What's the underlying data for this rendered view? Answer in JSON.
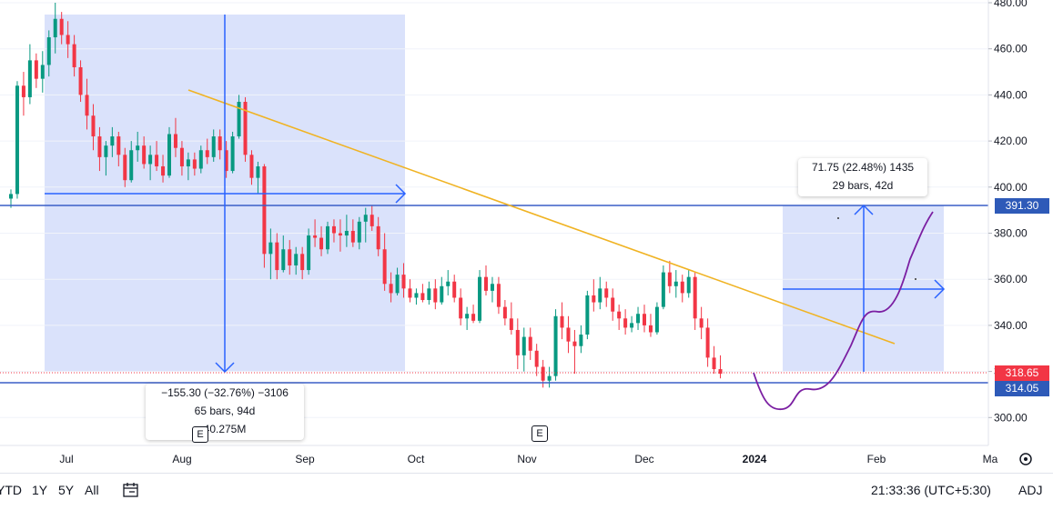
{
  "chart_data": {
    "type": "candlestick",
    "price_axis": {
      "ticks": [
        "480.00",
        "460.00",
        "440.00",
        "420.00",
        "400.00",
        "380.00",
        "360.00",
        "340.00",
        "320.00",
        "300.00"
      ],
      "ylim": [
        293,
        482
      ]
    },
    "time_axis": {
      "ticks": [
        "Jul",
        "Aug",
        "Sep",
        "Oct",
        "Nov",
        "Dec",
        "2024",
        "Feb",
        "Ma"
      ]
    },
    "up_color": "#089981",
    "down_color": "#f23645",
    "candles": [
      [
        395,
        399,
        391,
        397
      ],
      [
        397,
        446,
        395,
        444
      ],
      [
        444,
        450,
        431,
        439
      ],
      [
        439,
        462,
        436,
        455
      ],
      [
        455,
        458,
        443,
        447
      ],
      [
        447,
        459,
        441,
        453
      ],
      [
        453,
        468,
        448,
        465
      ],
      [
        465,
        480,
        458,
        473
      ],
      [
        473,
        476,
        462,
        466
      ],
      [
        466,
        472,
        456,
        462
      ],
      [
        462,
        466,
        448,
        452
      ],
      [
        452,
        455,
        437,
        440
      ],
      [
        440,
        447,
        425,
        431
      ],
      [
        431,
        436,
        416,
        422
      ],
      [
        422,
        426,
        407,
        413
      ],
      [
        413,
        420,
        405,
        418
      ],
      [
        418,
        426,
        413,
        422
      ],
      [
        422,
        424,
        409,
        414
      ],
      [
        414,
        417,
        400,
        403
      ],
      [
        403,
        420,
        402,
        416
      ],
      [
        416,
        424,
        411,
        418
      ],
      [
        418,
        422,
        408,
        410
      ],
      [
        410,
        418,
        403,
        414
      ],
      [
        414,
        420,
        407,
        409
      ],
      [
        409,
        414,
        402,
        405
      ],
      [
        405,
        426,
        404,
        423
      ],
      [
        423,
        430,
        413,
        417
      ],
      [
        417,
        420,
        405,
        409
      ],
      [
        409,
        415,
        403,
        412
      ],
      [
        412,
        415,
        405,
        408
      ],
      [
        408,
        418,
        406,
        416
      ],
      [
        416,
        421,
        410,
        413
      ],
      [
        413,
        425,
        411,
        422
      ],
      [
        422,
        425,
        412,
        416
      ],
      [
        416,
        420,
        404,
        407
      ],
      [
        407,
        424,
        406,
        422
      ],
      [
        422,
        440,
        421,
        437
      ],
      [
        437,
        439,
        411,
        414
      ],
      [
        414,
        416,
        401,
        404
      ],
      [
        404,
        411,
        397,
        409
      ],
      [
        409,
        410,
        365,
        371
      ],
      [
        371,
        382,
        360,
        376
      ],
      [
        376,
        380,
        360,
        364
      ],
      [
        364,
        379,
        363,
        373
      ],
      [
        373,
        377,
        362,
        366
      ],
      [
        366,
        374,
        362,
        371
      ],
      [
        371,
        374,
        360,
        364
      ],
      [
        364,
        382,
        362,
        379
      ],
      [
        379,
        386,
        374,
        378
      ],
      [
        378,
        383,
        370,
        373
      ],
      [
        373,
        385,
        371,
        383
      ],
      [
        383,
        386,
        376,
        380
      ],
      [
        380,
        386,
        372,
        379
      ],
      [
        379,
        388,
        374,
        381
      ],
      [
        381,
        386,
        374,
        376
      ],
      [
        376,
        387,
        373,
        385
      ],
      [
        385,
        391,
        376,
        388
      ],
      [
        388,
        392,
        381,
        383
      ],
      [
        383,
        387,
        370,
        373
      ],
      [
        373,
        380,
        355,
        358
      ],
      [
        358,
        363,
        350,
        354
      ],
      [
        354,
        365,
        353,
        362
      ],
      [
        362,
        367,
        352,
        356
      ],
      [
        356,
        360,
        350,
        352
      ],
      [
        352,
        356,
        349,
        354
      ],
      [
        354,
        358,
        350,
        351
      ],
      [
        351,
        359,
        349,
        356
      ],
      [
        356,
        360,
        347,
        350
      ],
      [
        350,
        361,
        349,
        357
      ],
      [
        357,
        364,
        353,
        359
      ],
      [
        359,
        362,
        350,
        352
      ],
      [
        352,
        356,
        340,
        343
      ],
      [
        343,
        348,
        338,
        345
      ],
      [
        345,
        349,
        341,
        342
      ],
      [
        342,
        364,
        341,
        361
      ],
      [
        361,
        366,
        353,
        355
      ],
      [
        355,
        361,
        350,
        358
      ],
      [
        358,
        361,
        345,
        348
      ],
      [
        348,
        351,
        340,
        343
      ],
      [
        343,
        350,
        336,
        338
      ],
      [
        338,
        343,
        321,
        327
      ],
      [
        327,
        339,
        320,
        335
      ],
      [
        335,
        339,
        325,
        329
      ],
      [
        329,
        332,
        318,
        322
      ],
      [
        322,
        325,
        313,
        316
      ],
      [
        316,
        322,
        313,
        318
      ],
      [
        318,
        347,
        316,
        344
      ],
      [
        344,
        350,
        334,
        339
      ],
      [
        339,
        344,
        328,
        333
      ],
      [
        333,
        338,
        319,
        331
      ],
      [
        331,
        340,
        328,
        336
      ],
      [
        336,
        355,
        334,
        353
      ],
      [
        353,
        360,
        346,
        350
      ],
      [
        350,
        361,
        347,
        356
      ],
      [
        356,
        359,
        348,
        352
      ],
      [
        352,
        356,
        342,
        346
      ],
      [
        346,
        349,
        338,
        343
      ],
      [
        343,
        347,
        336,
        339
      ],
      [
        339,
        344,
        337,
        341
      ],
      [
        341,
        348,
        338,
        345
      ],
      [
        345,
        349,
        337,
        340
      ],
      [
        340,
        345,
        335,
        337
      ],
      [
        337,
        350,
        336,
        348
      ],
      [
        348,
        366,
        347,
        363
      ],
      [
        363,
        368,
        354,
        357
      ],
      [
        357,
        364,
        352,
        359
      ],
      [
        359,
        362,
        350,
        354
      ],
      [
        354,
        364,
        352,
        361
      ],
      [
        361,
        363,
        338,
        343
      ],
      [
        343,
        348,
        334,
        339
      ],
      [
        339,
        343,
        322,
        326
      ],
      [
        326,
        331,
        319,
        321
      ],
      [
        321,
        327,
        317,
        319
      ]
    ]
  },
  "axis_labels": {
    "current_price": "318.65",
    "level_top": "391.30",
    "level_bottom": "314.05"
  },
  "measure_down": {
    "line1": "−155.30 (−32.76%) −3106",
    "line2": "65 bars, 94d",
    "line3": "40.275M"
  },
  "measure_up": {
    "line1": "71.75 (22.48%) 1435",
    "line2": "29 bars, 42d"
  },
  "events": [
    {
      "label": "E"
    },
    {
      "label": "E"
    }
  ],
  "toolbar": {
    "ranges": [
      "YTD",
      "1Y",
      "5Y",
      "All"
    ],
    "time": "21:33:36 (UTC+5:30)",
    "adj": "ADJ"
  },
  "colors": {
    "measure_fill": "#d8e0fb",
    "measure_line": "#2962ff",
    "horizontal_level": "#3a5ec7",
    "trendline": "#f0b323",
    "projection": "#7b1fa2"
  }
}
